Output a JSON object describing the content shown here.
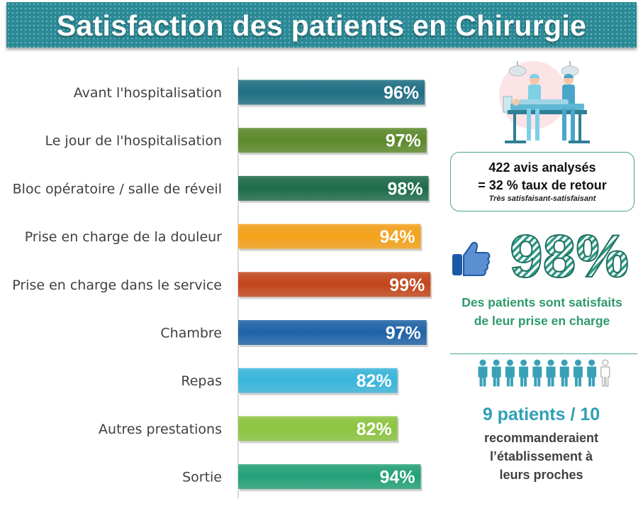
{
  "header": {
    "title": "Satisfaction des patients en Chirurgie"
  },
  "chart_data": {
    "type": "bar",
    "orientation": "horizontal",
    "title": "Satisfaction des patients en Chirurgie",
    "categories": [
      "Avant l'hospitalisation",
      "Le jour de l'hospitalisation",
      "Bloc opératoire / salle de réveil",
      "Prise en charge de la douleur",
      "Prise en charge dans le service",
      "Chambre",
      "Repas",
      "Autres prestations",
      "Sortie"
    ],
    "values": [
      96,
      97,
      98,
      94,
      99,
      97,
      82,
      82,
      94
    ],
    "value_labels": [
      "96%",
      "97%",
      "98%",
      "94%",
      "99%",
      "97%",
      "82%",
      "82%",
      "94%"
    ],
    "bar_colors": [
      "#1f6f84",
      "#5c8a2a",
      "#1d6b4a",
      "#f5a21a",
      "#c4461a",
      "#1e63a8",
      "#39b6dc",
      "#8cc63f",
      "#22a178"
    ],
    "xlim": [
      0,
      100
    ],
    "grid": false,
    "legend": "none"
  },
  "summary": {
    "reviews_line1": "422 avis analysés",
    "reviews_line2": "= 32 % taux de retour",
    "reviews_line3": "Très satisfaisant-satisfaisant",
    "big_percent": "98%",
    "satisfied_line1": "Des patients sont satisfaits",
    "satisfied_line2": "de leur prise en charge",
    "people_highlighted": 9,
    "people_total": 10,
    "recommend_big": "9 patients / 10",
    "recommend_line1": "recommanderaient",
    "recommend_line2": "l’établissement à",
    "recommend_line3": "leurs proches"
  },
  "colors": {
    "title_bg": "#2a8a96",
    "accent_green": "#2e9a6c",
    "accent_blue": "#2fa0b5",
    "people": "#3aa0b8"
  },
  "icons": [
    "surgery-team-icon",
    "thumbs-up-icon",
    "person-icon"
  ]
}
